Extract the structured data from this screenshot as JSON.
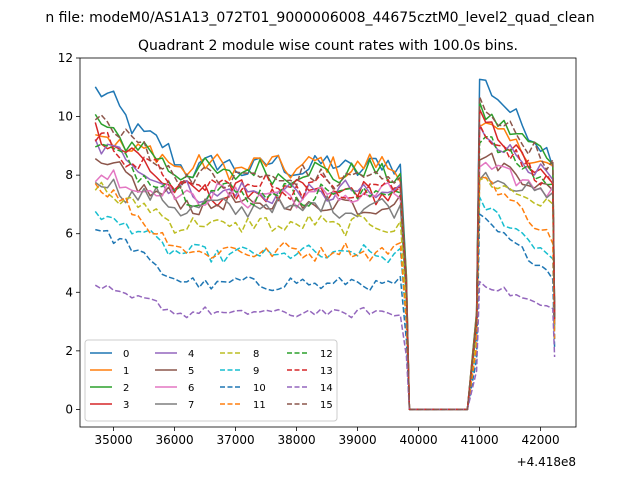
{
  "suptitle": "n file: modeM0/AS1A13_072T01_9000006008_44675cztM0_level2_quad_clean",
  "chart_data": {
    "type": "line",
    "title": "Quadrant 2 module wise count rates with 100.0s bins.",
    "xlabel": "",
    "ylabel": "",
    "x_offset_label": "+4.418e8",
    "xlim": [
      34450,
      42580
    ],
    "ylim": [
      -0.6,
      12
    ],
    "x_ticks": [
      35000,
      36000,
      37000,
      38000,
      39000,
      40000,
      41000,
      42000
    ],
    "x_tick_labels": [
      "35000",
      "36000",
      "37000",
      "38000",
      "39000",
      "40000",
      "41000",
      "42000"
    ],
    "y_ticks": [
      0,
      2,
      4,
      6,
      8,
      10,
      12
    ],
    "y_tick_labels": [
      "0",
      "2",
      "4",
      "6",
      "8",
      "10",
      "12"
    ],
    "segments": [
      {
        "start": 34700,
        "end": 39700,
        "step": 100
      },
      {
        "start": 39750,
        "end": 40850,
        "step": 100
      },
      {
        "start": 41000,
        "end": 42200,
        "step": 100
      }
    ],
    "series": [
      {
        "name": "0",
        "color": "#1f77b4",
        "dash": "solid",
        "level": 8.3,
        "start": 10.9,
        "end": 8.6
      },
      {
        "name": "1",
        "color": "#ff7f0e",
        "dash": "solid",
        "level": 8.3,
        "start": 9.4,
        "end": 8.2
      },
      {
        "name": "2",
        "color": "#2ca02c",
        "dash": "solid",
        "level": 8.1,
        "start": 9.8,
        "end": 8.6
      },
      {
        "name": "3",
        "color": "#d62728",
        "dash": "solid",
        "level": 7.4,
        "start": 9.6,
        "end": 7.6
      },
      {
        "name": "4",
        "color": "#9467bd",
        "dash": "solid",
        "level": 7.4,
        "start": 9.2,
        "end": 7.8
      },
      {
        "name": "5",
        "color": "#8c564b",
        "dash": "solid",
        "level": 7.0,
        "start": 8.4,
        "end": 7.4
      },
      {
        "name": "6",
        "color": "#e377c2",
        "dash": "solid",
        "level": 7.3,
        "start": 8.0,
        "end": 7.4
      },
      {
        "name": "7",
        "color": "#7f7f7f",
        "dash": "solid",
        "level": 6.9,
        "start": 7.8,
        "end": 7.2
      },
      {
        "name": "8",
        "color": "#bcbd22",
        "dash": "dashed",
        "level": 6.3,
        "start": 7.6,
        "end": 6.9
      },
      {
        "name": "9",
        "color": "#17becf",
        "dash": "dashed",
        "level": 5.3,
        "start": 6.8,
        "end": 5.2
      },
      {
        "name": "10",
        "color": "#1f77b4",
        "dash": "dashed",
        "level": 4.3,
        "start": 6.3,
        "end": 4.6
      },
      {
        "name": "11",
        "color": "#ff7f0e",
        "dash": "dashed",
        "level": 5.4,
        "start": 7.8,
        "end": 5.8
      },
      {
        "name": "12",
        "color": "#2ca02c",
        "dash": "dashed",
        "level": 7.4,
        "start": 9.0,
        "end": 7.6
      },
      {
        "name": "13",
        "color": "#d62728",
        "dash": "dashed",
        "level": 7.6,
        "start": 9.3,
        "end": 7.6
      },
      {
        "name": "14",
        "color": "#9467bd",
        "dash": "dashed",
        "level": 3.3,
        "start": 4.2,
        "end": 3.4
      },
      {
        "name": "15",
        "color": "#8c564b",
        "dash": "dashed",
        "level": 7.9,
        "start": 10.1,
        "end": 8.3
      }
    ],
    "legend": {
      "location": "lower-left",
      "columns": 4,
      "entries": [
        "0",
        "1",
        "2",
        "3",
        "4",
        "5",
        "6",
        "7",
        "8",
        "9",
        "10",
        "11",
        "12",
        "13",
        "14",
        "15"
      ]
    }
  }
}
